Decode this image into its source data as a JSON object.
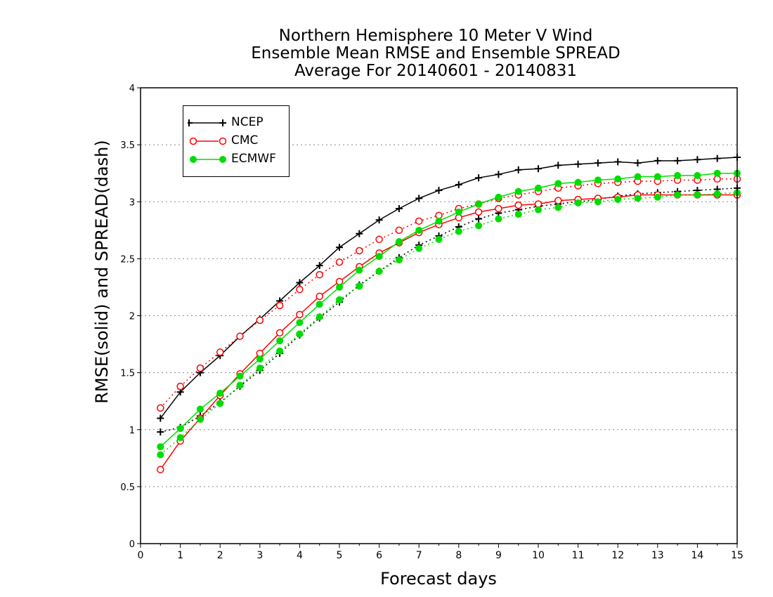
{
  "chart_data": {
    "type": "line",
    "title": [
      "Northern Hemisphere 10 Meter V Wind",
      "Ensemble Mean RMSE and Ensemble SPREAD",
      "Average For 20140601 - 20140831"
    ],
    "xlabel": "Forecast days",
    "ylabel": "RMSE(solid) and SPREAD(dash)",
    "xlim": [
      0,
      15
    ],
    "ylim": [
      0,
      4
    ],
    "xticks": [
      "0",
      "1",
      "2",
      "3",
      "4",
      "5",
      "6",
      "7",
      "8",
      "9",
      "10",
      "11",
      "12",
      "13",
      "14",
      "15"
    ],
    "yticks": [
      "0",
      "0.5",
      "1",
      "1.5",
      "2",
      "2.5",
      "3",
      "3.5",
      "4"
    ],
    "grid": "horizontal dotted",
    "legend_position": "top-left",
    "x": [
      0.5,
      1,
      1.5,
      2,
      2.5,
      3,
      3.5,
      4,
      4.5,
      5,
      5.5,
      6,
      6.5,
      7,
      7.5,
      8,
      8.5,
      9,
      9.5,
      10,
      10.5,
      11,
      11.5,
      12,
      12.5,
      13,
      13.5,
      14,
      14.5,
      15
    ],
    "series": [
      {
        "name": "NCEP",
        "metric": "RMSE",
        "color": "#000000",
        "marker": "plus",
        "values": [
          1.1,
          1.33,
          1.5,
          1.65,
          1.82,
          1.97,
          2.13,
          2.29,
          2.44,
          2.6,
          2.72,
          2.84,
          2.94,
          3.03,
          3.1,
          3.15,
          3.21,
          3.24,
          3.28,
          3.29,
          3.32,
          3.33,
          3.34,
          3.35,
          3.34,
          3.36,
          3.36,
          3.37,
          3.38,
          3.39
        ]
      },
      {
        "name": "NCEP",
        "metric": "SPREAD",
        "color": "#000000",
        "marker": "plus",
        "values": [
          0.98,
          1.02,
          1.12,
          1.24,
          1.38,
          1.52,
          1.67,
          1.83,
          1.98,
          2.12,
          2.27,
          2.39,
          2.51,
          2.62,
          2.7,
          2.78,
          2.85,
          2.9,
          2.93,
          2.96,
          2.98,
          3.0,
          3.02,
          3.05,
          3.07,
          3.08,
          3.09,
          3.1,
          3.11,
          3.12
        ]
      },
      {
        "name": "CMC",
        "metric": "RMSE",
        "color": "#ff0000",
        "marker": "open-circle",
        "values": [
          0.65,
          0.9,
          1.1,
          1.3,
          1.49,
          1.67,
          1.85,
          2.01,
          2.17,
          2.3,
          2.43,
          2.55,
          2.64,
          2.73,
          2.8,
          2.86,
          2.91,
          2.94,
          2.97,
          2.98,
          3.01,
          3.02,
          3.03,
          3.04,
          3.06,
          3.06,
          3.06,
          3.06,
          3.06,
          3.06
        ]
      },
      {
        "name": "CMC",
        "metric": "SPREAD",
        "color": "#ff0000",
        "marker": "open-circle",
        "values": [
          1.19,
          1.38,
          1.54,
          1.68,
          1.82,
          1.96,
          2.09,
          2.23,
          2.36,
          2.47,
          2.57,
          2.67,
          2.75,
          2.83,
          2.88,
          2.94,
          2.98,
          3.03,
          3.06,
          3.09,
          3.12,
          3.14,
          3.16,
          3.17,
          3.18,
          3.18,
          3.19,
          3.19,
          3.2,
          3.2
        ]
      },
      {
        "name": "ECMWF",
        "metric": "RMSE",
        "color": "#00dd00",
        "marker": "filled-circle",
        "values": [
          0.85,
          1.01,
          1.18,
          1.32,
          1.47,
          1.62,
          1.78,
          1.94,
          2.1,
          2.25,
          2.4,
          2.52,
          2.65,
          2.75,
          2.83,
          2.91,
          2.98,
          3.04,
          3.09,
          3.12,
          3.16,
          3.17,
          3.19,
          3.2,
          3.22,
          3.22,
          3.23,
          3.23,
          3.25,
          3.25
        ]
      },
      {
        "name": "ECMWF",
        "metric": "SPREAD",
        "color": "#00dd00",
        "marker": "filled-circle",
        "values": [
          0.78,
          0.93,
          1.09,
          1.23,
          1.39,
          1.54,
          1.69,
          1.84,
          1.99,
          2.14,
          2.26,
          2.39,
          2.49,
          2.59,
          2.67,
          2.74,
          2.79,
          2.85,
          2.89,
          2.93,
          2.95,
          2.99,
          3.0,
          3.02,
          3.03,
          3.04,
          3.06,
          3.06,
          3.07,
          3.08
        ]
      }
    ],
    "legend": [
      {
        "label": "NCEP",
        "color": "#000000",
        "marker": "plus"
      },
      {
        "label": "CMC",
        "color": "#ff0000",
        "marker": "open-circle"
      },
      {
        "label": "ECMWF",
        "color": "#00dd00",
        "marker": "filled-circle"
      }
    ]
  }
}
